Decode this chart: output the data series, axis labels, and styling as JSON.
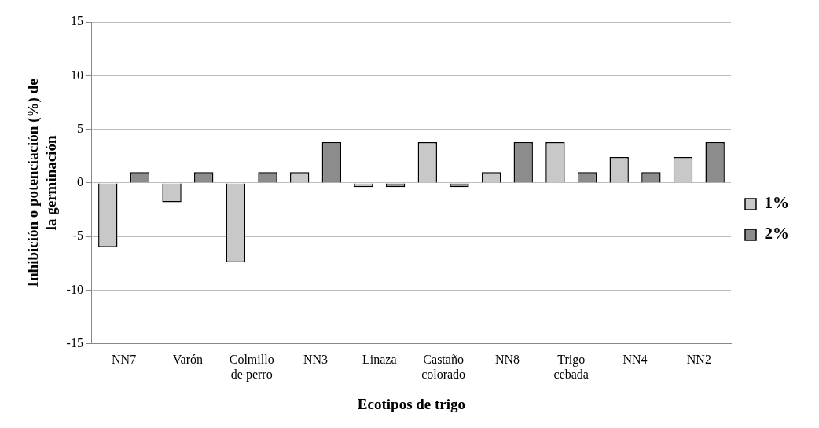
{
  "chart_data": {
    "type": "bar",
    "xlabel": "Ecotipos de trigo",
    "ylabel": "Inhibición o potenciación (%) de la germinación",
    "categories": [
      "NN7",
      "Varón",
      "Colmillo de perro",
      "NN3",
      "Linaza",
      "Castaño colorado",
      "NN8",
      "Trigo cebada",
      "NN4",
      "NN2"
    ],
    "series": [
      {
        "name": "1%",
        "color": "#c8c8c8",
        "values": [
          -6,
          -1.8,
          -7.4,
          1,
          -0.4,
          3.8,
          1,
          3.8,
          2.4,
          2.4
        ]
      },
      {
        "name": "2%",
        "color": "#8c8c8c",
        "values": [
          1,
          1,
          1,
          3.8,
          -0.4,
          -0.4,
          3.8,
          1,
          1,
          3.8
        ]
      }
    ],
    "ylim": [
      -15,
      15
    ],
    "yticks": [
      -15,
      -10,
      -5,
      0,
      5,
      10,
      15
    ],
    "grid": "y",
    "legend": "right"
  }
}
